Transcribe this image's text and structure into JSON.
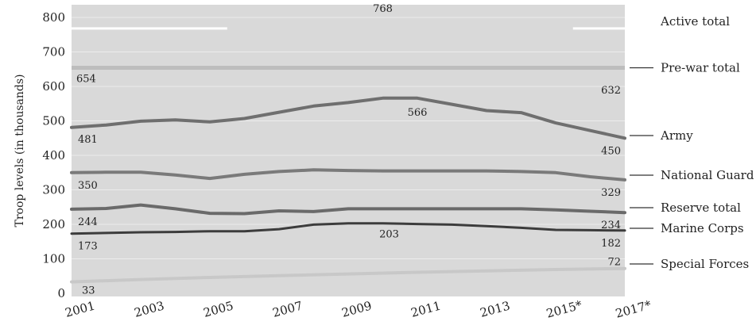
{
  "chart_data": {
    "type": "line",
    "title": "",
    "xlabel": "",
    "ylabel": "Troop levels (in thousands)",
    "ylim": [
      0,
      800
    ],
    "yticks": [
      0,
      100,
      200,
      300,
      400,
      500,
      600,
      700,
      800
    ],
    "xlim": [
      2001,
      2017
    ],
    "xticks": [
      "2001",
      "2003",
      "2005",
      "2007",
      "2009",
      "2011",
      "2013",
      "2015*",
      "2017*"
    ],
    "grid": true,
    "background": "#d9d9d9",
    "legend_placement": "right",
    "series": [
      {
        "name": "Army",
        "color": "#6f6f6f",
        "x": [
          2001,
          2002,
          2003,
          2004,
          2005,
          2006,
          2007,
          2008,
          2009,
          2010,
          2011,
          2012,
          2013,
          2014,
          2015,
          2016,
          2017
        ],
        "values": [
          481,
          488,
          499,
          503,
          497,
          507,
          525,
          543,
          553,
          566,
          566,
          548,
          530,
          524,
          494,
          472,
          450
        ],
        "labels": [
          {
            "x": 2001,
            "y": 481,
            "text": "481"
          },
          {
            "x": 2011,
            "y": 566,
            "text": "566"
          },
          {
            "x": 2017,
            "y": 450,
            "text": "450"
          }
        ]
      },
      {
        "name": "National Guard",
        "color": "#7a7a7a",
        "x": [
          2001,
          2002,
          2003,
          2004,
          2005,
          2006,
          2007,
          2008,
          2009,
          2010,
          2011,
          2012,
          2013,
          2014,
          2015,
          2016,
          2017
        ],
        "values": [
          350,
          351,
          351,
          343,
          333,
          345,
          353,
          358,
          356,
          355,
          355,
          355,
          355,
          353,
          350,
          338,
          329
        ],
        "labels": [
          {
            "x": 2001,
            "y": 350,
            "text": "350"
          },
          {
            "x": 2017,
            "y": 329,
            "text": "329"
          }
        ]
      },
      {
        "name": "Reserve total",
        "color": "#6a6a6a",
        "x": [
          2001,
          2002,
          2003,
          2004,
          2005,
          2006,
          2007,
          2008,
          2009,
          2010,
          2011,
          2012,
          2013,
          2014,
          2015,
          2016,
          2017
        ],
        "values": [
          244,
          246,
          256,
          245,
          232,
          231,
          239,
          237,
          245,
          245,
          245,
          245,
          245,
          245,
          242,
          238,
          234
        ],
        "labels": [
          {
            "x": 2001,
            "y": 244,
            "text": "244"
          },
          {
            "x": 2017,
            "y": 234,
            "text": "234"
          }
        ]
      },
      {
        "name": "Marine Corps",
        "color": "#3c3c3c",
        "x": [
          2001,
          2002,
          2003,
          2004,
          2005,
          2006,
          2007,
          2008,
          2009,
          2010,
          2011,
          2012,
          2013,
          2014,
          2015,
          2016,
          2017
        ],
        "values": [
          173,
          175,
          177,
          178,
          180,
          180,
          186,
          199,
          203,
          203,
          201,
          199,
          195,
          190,
          184,
          183,
          182
        ],
        "labels": [
          {
            "x": 2001,
            "y": 173,
            "text": "173"
          },
          {
            "x": 2010,
            "y": 203,
            "text": "203"
          },
          {
            "x": 2017,
            "y": 182,
            "text": "182"
          }
        ]
      },
      {
        "name": "Special Forces",
        "color": "#c8c8c8",
        "x": [
          2001,
          2003,
          2005,
          2007,
          2009,
          2011,
          2013,
          2015,
          2017
        ],
        "values": [
          33,
          40,
          46,
          51,
          56,
          61,
          65,
          69,
          72
        ],
        "labels": [
          {
            "x": 2001,
            "y": 33,
            "text": "33"
          },
          {
            "x": 2017,
            "y": 72,
            "text": "72"
          }
        ]
      }
    ],
    "reference_lines": [
      {
        "name": "Pre-war total",
        "color": "#bdbdbd",
        "y": 654,
        "labels": [
          {
            "x": 2001,
            "y": 654,
            "text": "654"
          },
          {
            "x": 2017,
            "y": 632,
            "text": "632"
          }
        ]
      },
      {
        "name": "Active total",
        "color": "#ffffff",
        "y": 768,
        "labels": [
          {
            "x": 2010,
            "y": 768,
            "text": "768"
          }
        ]
      }
    ]
  }
}
